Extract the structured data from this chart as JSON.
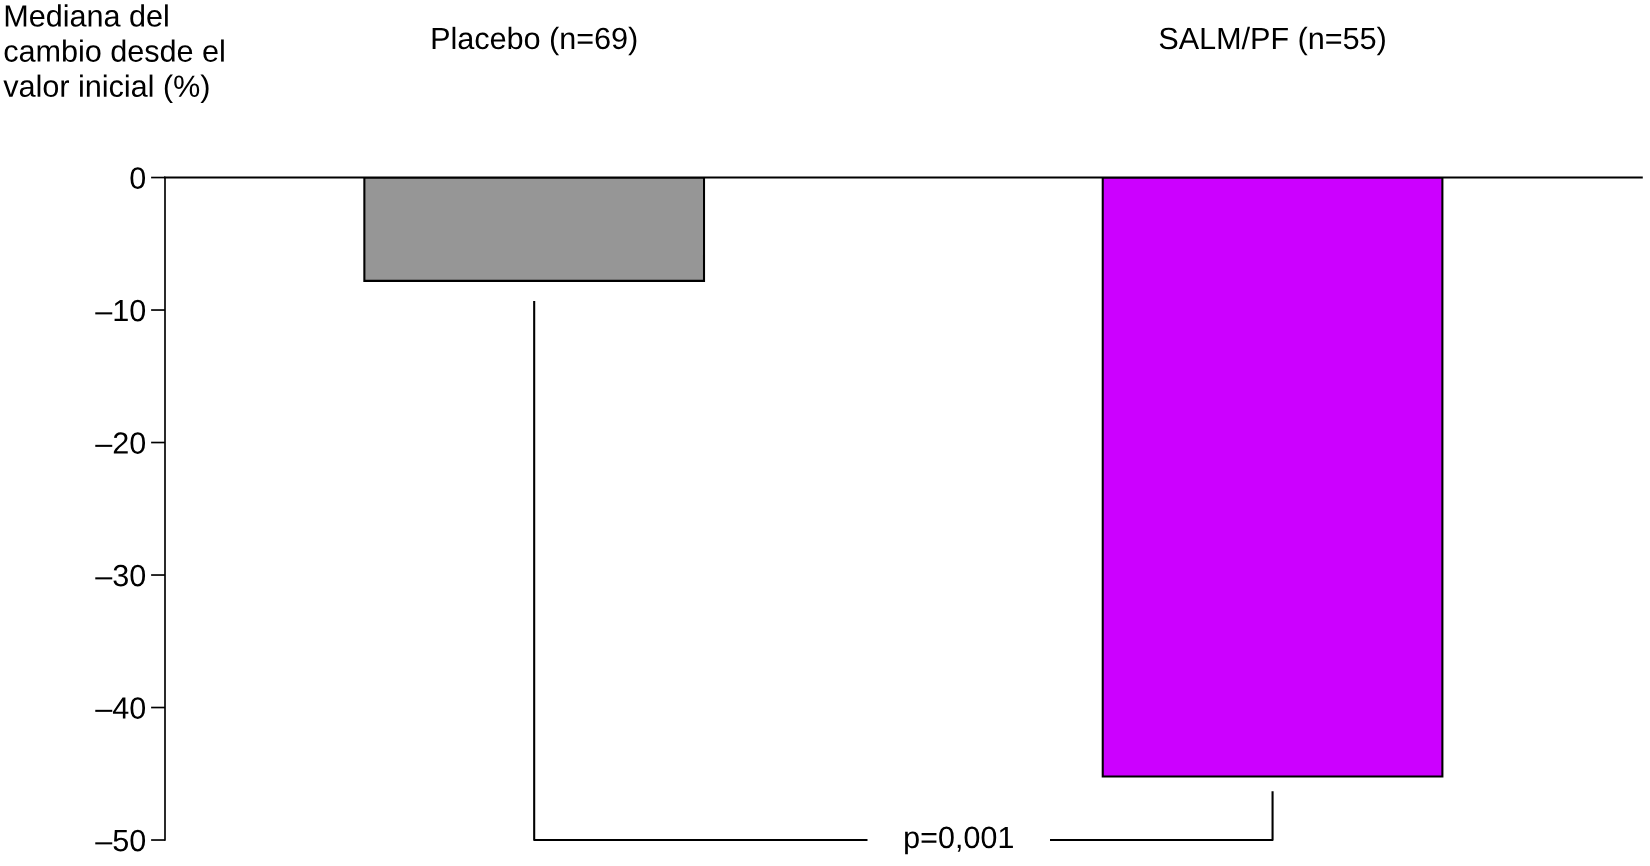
{
  "chart_data": {
    "type": "bar",
    "ylabel": "Mediana del\ncambio desde el\nvalor inicial (%)",
    "categories": [
      "Placebo (n=69)",
      "SALM/PF (n=55)"
    ],
    "values": [
      -7.8,
      -45.2
    ],
    "colors": [
      "#969696",
      "#cc00ff"
    ],
    "ylim": [
      -50,
      0
    ],
    "yticks": [
      {
        "value": 0,
        "label": "0"
      },
      {
        "value": -10,
        "label": "–10"
      },
      {
        "value": -20,
        "label": "–20"
      },
      {
        "value": -30,
        "label": "–30"
      },
      {
        "value": -40,
        "label": "–40"
      },
      {
        "value": -50,
        "label": "–50"
      }
    ],
    "annotations": [
      "p=0,001"
    ],
    "grid": false
  }
}
